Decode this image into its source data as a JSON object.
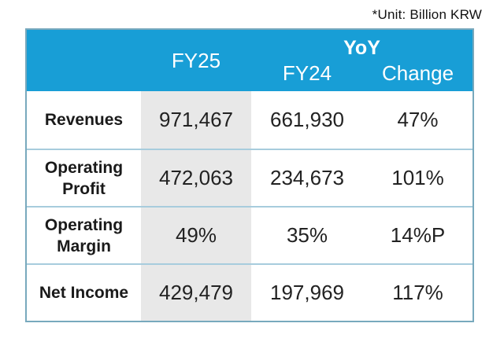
{
  "unit_note": "*Unit: Billion KRW",
  "table": {
    "header": {
      "fy25": "FY25",
      "yoy": "YoY",
      "fy24": "FY24",
      "change": "Change"
    },
    "rows": [
      {
        "label": "Revenues",
        "fy25": "971,467",
        "fy24": "661,930",
        "change": "47%"
      },
      {
        "label": "Operating Profit",
        "fy25": "472,063",
        "fy24": "234,673",
        "change": "101%"
      },
      {
        "label": "Operating Margin",
        "fy25": "49%",
        "fy24": "35%",
        "change": "14%P"
      },
      {
        "label": "Net Income",
        "fy25": "429,479",
        "fy24": "197,969",
        "change": "117%"
      }
    ]
  },
  "colors": {
    "header_bg": "#189ED6",
    "highlight_col_bg": "#E8E8E8",
    "row_divider": "#A7CCDD",
    "outer_border": "#78A9BD",
    "header_text": "#FFFFFF",
    "body_text": "#1A1A1A"
  }
}
